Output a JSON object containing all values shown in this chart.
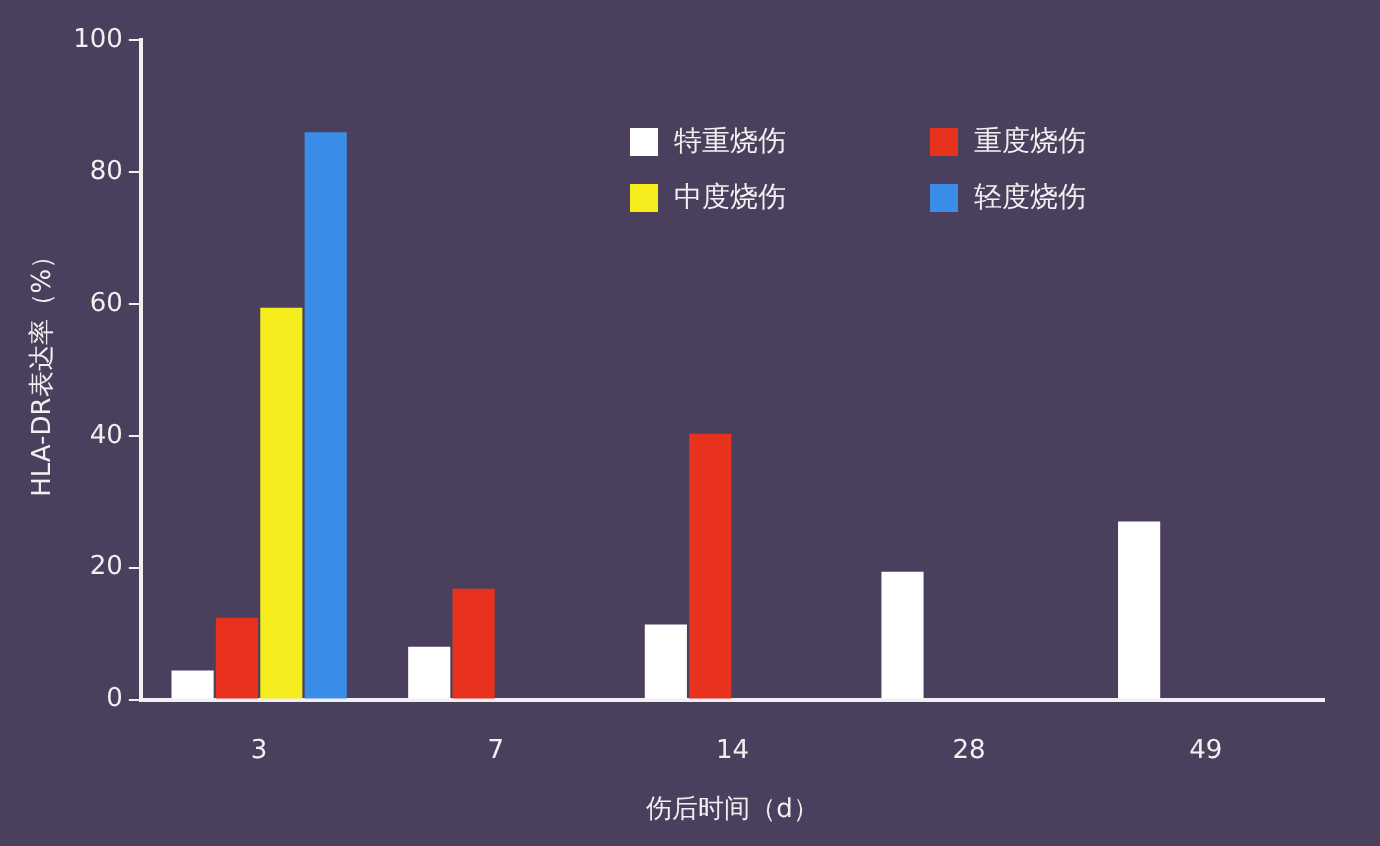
{
  "chart_data": {
    "type": "bar",
    "xlabel": "伤后时间（d）",
    "ylabel": "HLA-DR表达率（%）",
    "categories": [
      "3",
      "7",
      "14",
      "28",
      "49"
    ],
    "series": [
      {
        "name": "特重烧伤",
        "color": "#ffffff",
        "values": [
          4.4,
          8,
          11.4,
          19.4,
          27
        ]
      },
      {
        "name": "重度烧伤",
        "color": "#e8321e",
        "values": [
          12.4,
          16.8,
          40.3,
          null,
          null
        ]
      },
      {
        "name": "中度烧伤",
        "color": "#f5ec1e",
        "values": [
          59.4,
          null,
          null,
          null,
          null
        ]
      },
      {
        "name": "轻度烧伤",
        "color": "#3a8ee8",
        "values": [
          86,
          null,
          null,
          null,
          null
        ]
      }
    ],
    "ylim": [
      0,
      100
    ],
    "yticks": [
      0,
      20,
      40,
      60,
      80,
      100
    ],
    "grid": false,
    "legend": "top right"
  }
}
